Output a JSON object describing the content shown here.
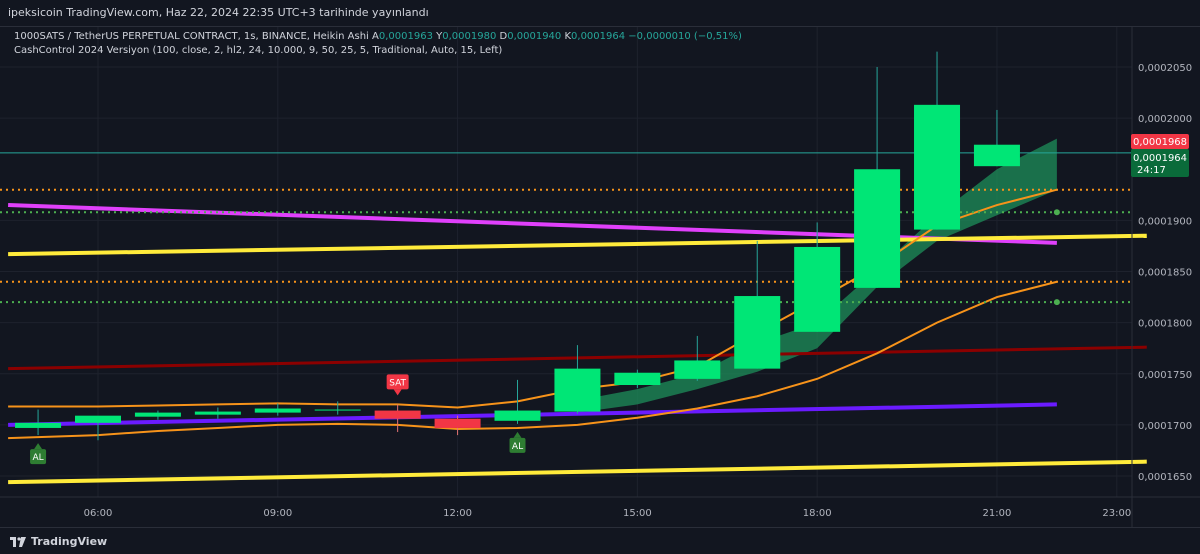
{
  "header": {
    "publisher": "ipeksicoin TradingView.com, Haz 22, 2024 22:35 UTC+3 tarihinde yayınlandı"
  },
  "legend": {
    "symbol": "1000SATS / TetherUS PERPETUAL CONTRACT, 1s, BINANCE, Heikin Ashi",
    "o_label": "A",
    "o_val": "0,0001963",
    "h_label": "Y",
    "h_val": "0,0001980",
    "l_label": "D",
    "l_val": "0,0001940",
    "c_label": "K",
    "c_val": "0,0001964",
    "change": "−0,0000010 (−0,51%)",
    "indicator": "CashControl 2024  Versiyon (100, close, 2, hl2, 24, 10.000, 9, 50, 25, 5, Traditional, Auto, 15, Left)"
  },
  "price_tags": {
    "red": "0,0001968",
    "green": "0,0001964",
    "countdown": "24:17"
  },
  "footer": {
    "brand": "TradingView"
  },
  "colors": {
    "bg": "#121620",
    "up": "#00e676",
    "down": "#f23645",
    "yellow": "#ffeb3b",
    "magenta": "#e040fb",
    "darkred": "#8b0000",
    "purple": "#6a1bff",
    "orange": "#f7931a",
    "green_dot": "#4caf50"
  },
  "chart_data": {
    "type": "candlestick",
    "style": "Heikin Ashi",
    "timeframe": "1s",
    "y_ticks": [
      "0,0001650",
      "0,0001700",
      "0,0001750",
      "0,0001800",
      "0,0001850",
      "0,0001900",
      "0,0002000",
      "0,0002050"
    ],
    "x_ticks": [
      "06:00",
      "09:00",
      "12:00",
      "15:00",
      "18:00",
      "21:00",
      "23:00"
    ],
    "ylim": [
      0.0001625,
      0.0002078
    ],
    "candles": [
      {
        "t": "05:00",
        "o": 0.0001697,
        "h": 0.0001715,
        "l": 0.000169,
        "c": 0.0001702
      },
      {
        "t": "06:00",
        "o": 0.0001702,
        "h": 0.0001708,
        "l": 0.0001685,
        "c": 0.0001709
      },
      {
        "t": "07:00",
        "o": 0.0001708,
        "h": 0.0001714,
        "l": 0.0001705,
        "c": 0.0001712
      },
      {
        "t": "08:00",
        "o": 0.000171,
        "h": 0.0001717,
        "l": 0.0001706,
        "c": 0.0001713
      },
      {
        "t": "09:00",
        "o": 0.0001712,
        "h": 0.0001721,
        "l": 0.0001709,
        "c": 0.0001716
      },
      {
        "t": "10:00",
        "o": 0.0001714,
        "h": 0.0001723,
        "l": 0.000171,
        "c": 0.0001715
      },
      {
        "t": "11:00",
        "o": 0.0001714,
        "h": 0.000172,
        "l": 0.0001693,
        "c": 0.0001706
      },
      {
        "t": "12:00",
        "o": 0.0001706,
        "h": 0.0001709,
        "l": 0.000169,
        "c": 0.0001697
      },
      {
        "t": "13:00",
        "o": 0.0001704,
        "h": 0.0001744,
        "l": 0.0001701,
        "c": 0.0001714
      },
      {
        "t": "14:00",
        "o": 0.0001713,
        "h": 0.0001778,
        "l": 0.0001711,
        "c": 0.0001755
      },
      {
        "t": "15:00",
        "o": 0.0001739,
        "h": 0.0001754,
        "l": 0.0001736,
        "c": 0.0001751
      },
      {
        "t": "16:00",
        "o": 0.0001745,
        "h": 0.0001787,
        "l": 0.0001743,
        "c": 0.0001763
      },
      {
        "t": "17:00",
        "o": 0.0001755,
        "h": 0.000188,
        "l": 0.0001755,
        "c": 0.0001826
      },
      {
        "t": "18:00",
        "o": 0.0001791,
        "h": 0.0001898,
        "l": 0.0001791,
        "c": 0.0001874
      },
      {
        "t": "19:00",
        "o": 0.0001834,
        "h": 0.000205,
        "l": 0.0001834,
        "c": 0.000195
      },
      {
        "t": "20:00",
        "o": 0.0001891,
        "h": 0.0002065,
        "l": 0.0001891,
        "c": 0.0002013
      },
      {
        "t": "21:00",
        "o": 0.0001953,
        "h": 0.0002008,
        "l": 0.0001953,
        "c": 0.0001974
      }
    ],
    "signals": [
      {
        "t": "05:00",
        "label": "AL",
        "side": "buy"
      },
      {
        "t": "11:00",
        "label": "SAT",
        "side": "sell"
      },
      {
        "t": "13:00",
        "label": "AL",
        "side": "buy"
      }
    ],
    "hlines": [
      {
        "y": 0.000193,
        "color": "#f7931a",
        "style": "dotted"
      },
      {
        "y": 0.0001908,
        "color": "#4caf50",
        "style": "dotted"
      },
      {
        "y": 0.000184,
        "color": "#f7931a",
        "style": "dotted"
      },
      {
        "y": 0.000182,
        "color": "#4caf50",
        "style": "dotted"
      },
      {
        "y": 0.0001966,
        "color": "#26a69a",
        "style": "solid"
      }
    ],
    "trend_lines": [
      {
        "name": "magenta",
        "color": "#e040fb",
        "from": [
          "04:30",
          0.0001915
        ],
        "to": [
          "22:00",
          0.0001878
        ]
      },
      {
        "name": "yellow-upper",
        "color": "#ffeb3b",
        "from": [
          "04:30",
          0.0001867
        ],
        "to": [
          "23:30",
          0.0001885
        ]
      },
      {
        "name": "yellow-lower",
        "color": "#ffeb3b",
        "from": [
          "04:30",
          0.0001644
        ],
        "to": [
          "23:30",
          0.0001664
        ]
      },
      {
        "name": "darkred",
        "color": "#8b0000",
        "from": [
          "04:30",
          0.0001755
        ],
        "to": [
          "23:30",
          0.0001776
        ]
      },
      {
        "name": "purple",
        "color": "#6a1bff",
        "from": [
          "04:30",
          0.00017
        ],
        "to": [
          "22:00",
          0.000172
        ]
      }
    ]
  }
}
